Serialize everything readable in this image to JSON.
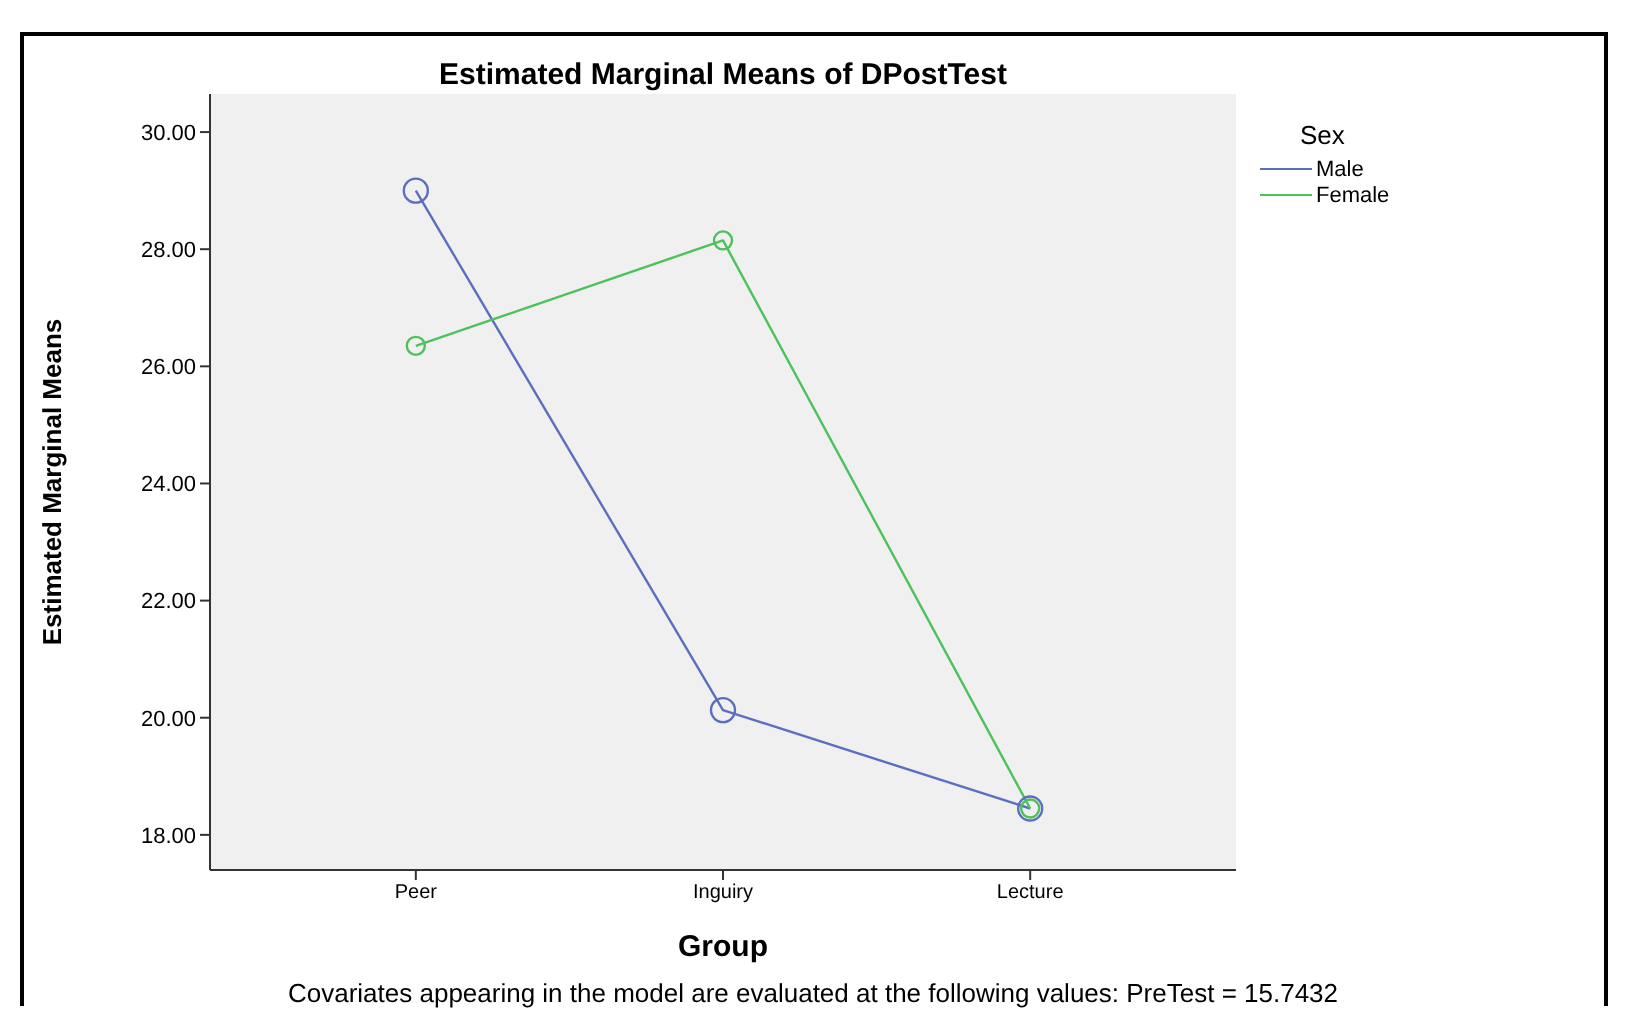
{
  "chart_data": {
    "type": "line",
    "title": "Estimated Marginal Means of DPostTest",
    "xlabel": "Group",
    "ylabel": "Estimated Marginal Means",
    "legend_title": "Sex",
    "categories": [
      "Peer",
      "Inguiry",
      "Lecture"
    ],
    "series": [
      {
        "name": "Male",
        "color": "#5a6fc0",
        "values": [
          29.0,
          20.13,
          18.45
        ]
      },
      {
        "name": "Female",
        "color": "#4cc25a",
        "values": [
          26.35,
          28.15,
          18.45
        ]
      }
    ],
    "ylim": [
      17.4,
      30.65
    ],
    "yticks": [
      {
        "value": 18,
        "label": "18.00"
      },
      {
        "value": 20,
        "label": "20.00"
      },
      {
        "value": 22,
        "label": "22.00"
      },
      {
        "value": 24,
        "label": "24.00"
      },
      {
        "value": 26,
        "label": "26.00"
      },
      {
        "value": 28,
        "label": "28.00"
      },
      {
        "value": 30,
        "label": "30.00"
      }
    ],
    "marker": "circle",
    "line_style": "solid",
    "legend": "top right",
    "grid": false,
    "annotations": [
      "Covariates appearing in the model are evaluated at the following values: PreTest = 15.7432"
    ]
  }
}
